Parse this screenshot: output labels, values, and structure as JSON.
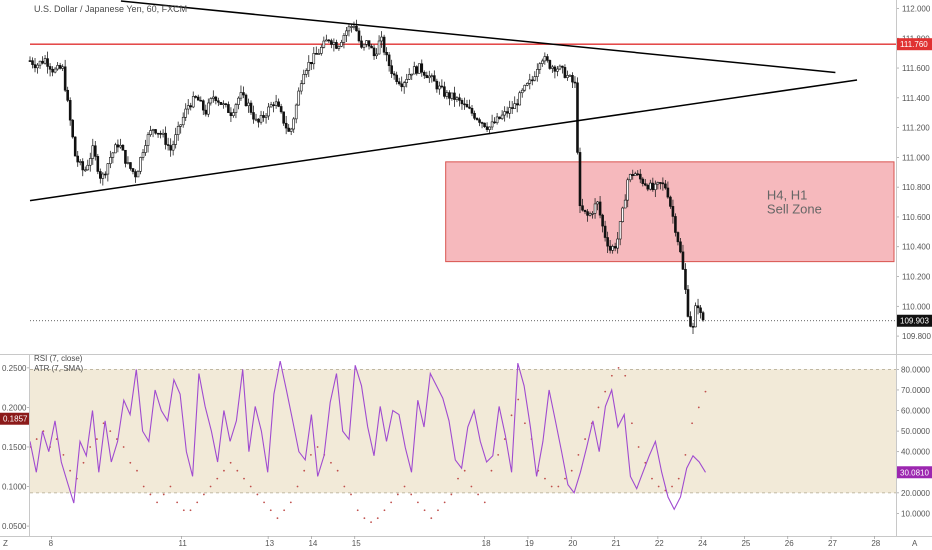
{
  "chart_data": [
    {
      "type": "candlestick",
      "title": "U.S. Dollar / Japanese Yen, 60, FXCM",
      "symbol": "USDJPY",
      "timeframe": "60",
      "source": "FXCM",
      "ylim": [
        109.72,
        112.03
      ],
      "y_ticks": [
        "112.000",
        "111.800",
        "111.600",
        "111.400",
        "111.200",
        "111.000",
        "110.800",
        "110.600",
        "110.400",
        "110.200",
        "110.000",
        "109.800"
      ],
      "x_ticks": [
        "8",
        "11",
        "13",
        "14",
        "15",
        "18",
        "19",
        "20",
        "21",
        "22",
        "24",
        "25",
        "26",
        "27",
        "28"
      ],
      "x_tick_pos": [
        0.5,
        3.5,
        5.5,
        6.5,
        7.5,
        10.5,
        11.5,
        12.5,
        13.5,
        14.5,
        15.5,
        16.5,
        17.5,
        18.5,
        19.5
      ],
      "x_range": [
        0,
        20
      ],
      "x_edge_left": "Z",
      "x_edge_right": "A",
      "price_levels": [
        {
          "name": "resistance",
          "value": 111.76,
          "label": "111.760",
          "color": "#e03131"
        },
        {
          "name": "last",
          "value": 109.903,
          "label": "109.903",
          "color": "#333333"
        }
      ],
      "trendlines": [
        {
          "name": "upper",
          "points": [
            [
              2.1,
              112.05
            ],
            [
              18.6,
              111.57
            ]
          ]
        },
        {
          "name": "lower",
          "points": [
            [
              0,
              110.71
            ],
            [
              19.1,
              111.52
            ]
          ]
        }
      ],
      "zone": {
        "label_line1": "H4, H1",
        "label_line2": "Sell Zone",
        "y_top": 110.97,
        "y_bottom": 110.3,
        "x_start": 9.6,
        "x_end": 20,
        "color": "#f3a5ab"
      },
      "path": [
        [
          0,
          111.65
        ],
        [
          0.15,
          111.62
        ],
        [
          0.35,
          111.66
        ],
        [
          0.55,
          111.58
        ],
        [
          0.75,
          111.6
        ],
        [
          0.9,
          111.3
        ],
        [
          1.05,
          111.0
        ],
        [
          1.25,
          110.9
        ],
        [
          1.45,
          111.05
        ],
        [
          1.65,
          110.85
        ],
        [
          1.85,
          111.0
        ],
        [
          2.05,
          111.1
        ],
        [
          2.25,
          110.95
        ],
        [
          2.45,
          110.88
        ],
        [
          2.65,
          111.1
        ],
        [
          2.85,
          111.2
        ],
        [
          3.05,
          111.15
        ],
        [
          3.25,
          111.05
        ],
        [
          3.45,
          111.2
        ],
        [
          3.65,
          111.35
        ],
        [
          3.85,
          111.4
        ],
        [
          4.05,
          111.3
        ],
        [
          4.25,
          111.42
        ],
        [
          4.45,
          111.35
        ],
        [
          4.65,
          111.3
        ],
        [
          4.85,
          111.42
        ],
        [
          5.05,
          111.35
        ],
        [
          5.25,
          111.22
        ],
        [
          5.45,
          111.3
        ],
        [
          5.65,
          111.38
        ],
        [
          5.85,
          111.25
        ],
        [
          6.0,
          111.15
        ],
        [
          6.15,
          111.35
        ],
        [
          6.3,
          111.58
        ],
        [
          6.5,
          111.65
        ],
        [
          6.7,
          111.72
        ],
        [
          6.9,
          111.8
        ],
        [
          7.1,
          111.75
        ],
        [
          7.3,
          111.85
        ],
        [
          7.5,
          111.9
        ],
        [
          7.65,
          111.72
        ],
        [
          7.8,
          111.78
        ],
        [
          7.95,
          111.68
        ],
        [
          8.1,
          111.8
        ],
        [
          8.25,
          111.65
        ],
        [
          8.4,
          111.55
        ],
        [
          8.6,
          111.5
        ],
        [
          8.8,
          111.58
        ],
        [
          9.0,
          111.6
        ],
        [
          9.2,
          111.55
        ],
        [
          9.4,
          111.48
        ],
        [
          9.6,
          111.42
        ],
        [
          9.8,
          111.4
        ],
        [
          10.0,
          111.35
        ],
        [
          10.2,
          111.3
        ],
        [
          10.4,
          111.25
        ],
        [
          10.6,
          111.2
        ],
        [
          10.8,
          111.25
        ],
        [
          11.0,
          111.3
        ],
        [
          11.2,
          111.35
        ],
        [
          11.4,
          111.45
        ],
        [
          11.6,
          111.52
        ],
        [
          11.8,
          111.68
        ],
        [
          12.0,
          111.62
        ],
        [
          12.2,
          111.6
        ],
        [
          12.4,
          111.55
        ],
        [
          12.6,
          111.48
        ],
        [
          12.65,
          111.0
        ],
        [
          12.7,
          110.65
        ],
        [
          12.9,
          110.6
        ],
        [
          13.1,
          110.7
        ],
        [
          13.25,
          110.5
        ],
        [
          13.4,
          110.38
        ],
        [
          13.55,
          110.42
        ],
        [
          13.7,
          110.65
        ],
        [
          13.8,
          110.85
        ],
        [
          13.95,
          110.9
        ],
        [
          14.1,
          110.85
        ],
        [
          14.25,
          110.82
        ],
        [
          14.4,
          110.78
        ],
        [
          14.55,
          110.82
        ],
        [
          14.7,
          110.8
        ],
        [
          14.85,
          110.6
        ],
        [
          15.0,
          110.4
        ],
        [
          15.1,
          110.2
        ],
        [
          15.2,
          109.95
        ],
        [
          15.3,
          109.82
        ],
        [
          15.4,
          110.05
        ],
        [
          15.5,
          109.92
        ],
        [
          15.6,
          109.9
        ]
      ]
    },
    {
      "type": "line",
      "indicator": "RSI (7, close)",
      "value_label": "30.0810",
      "value_color": "#9c27b0",
      "ylim": [
        0,
        86.5
      ],
      "y_ticks": [
        "80.0000",
        "70.0000",
        "60.0000",
        "50.0000",
        "40.0000",
        "30.0000",
        "20.0000",
        "10.0000"
      ],
      "band": {
        "top": 80,
        "bottom": 20,
        "color": "#f2ead8"
      },
      "series": [
        {
          "name": "RSI",
          "color": "#a04bd0",
          "values": [
            45,
            30,
            50,
            40,
            55,
            35,
            25,
            15,
            45,
            38,
            60,
            30,
            55,
            35,
            45,
            65,
            58,
            80,
            50,
            45,
            70,
            60,
            55,
            75,
            68,
            40,
            28,
            78,
            62,
            50,
            35,
            60,
            45,
            55,
            80,
            40,
            62,
            50,
            30,
            68,
            84,
            70,
            55,
            40,
            36,
            58,
            28,
            38,
            64,
            78,
            50,
            46,
            82,
            72,
            52,
            38,
            62,
            45,
            60,
            58,
            42,
            30,
            65,
            52,
            78,
            72,
            66,
            55,
            36,
            32,
            52,
            60,
            45,
            35,
            38,
            62,
            48,
            30,
            83,
            72,
            52,
            28,
            45,
            70,
            55,
            40,
            24,
            20,
            30,
            42,
            55,
            40,
            62,
            70,
            52,
            58,
            28,
            22,
            30,
            38,
            45,
            30,
            18,
            12,
            18,
            32,
            38,
            35,
            30
          ]
        }
      ],
      "x_range": [
        0,
        20
      ]
    },
    {
      "type": "scatter",
      "indicator": "ATR (7, SMA)",
      "value_label": "0.1857",
      "value_color": "#8b1a1a",
      "ylim": [
        0.04,
        0.265
      ],
      "y_ticks": [
        "0.2500",
        "0.2000",
        "0.1500",
        "0.1000",
        "0.0500"
      ],
      "series": [
        {
          "name": "ATR",
          "color": "#c0504d",
          "values": [
            0.15,
            0.16,
            0.17,
            0.15,
            0.16,
            0.14,
            0.12,
            0.11,
            0.13,
            0.15,
            0.16,
            0.18,
            0.17,
            0.16,
            0.15,
            0.13,
            0.12,
            0.1,
            0.09,
            0.08,
            0.09,
            0.1,
            0.08,
            0.07,
            0.07,
            0.08,
            0.09,
            0.1,
            0.11,
            0.12,
            0.13,
            0.12,
            0.11,
            0.1,
            0.09,
            0.08,
            0.07,
            0.06,
            0.07,
            0.08,
            0.1,
            0.12,
            0.14,
            0.15,
            0.14,
            0.13,
            0.12,
            0.1,
            0.09,
            0.07,
            0.06,
            0.055,
            0.06,
            0.07,
            0.08,
            0.09,
            0.1,
            0.09,
            0.08,
            0.07,
            0.06,
            0.07,
            0.08,
            0.09,
            0.11,
            0.12,
            0.1,
            0.09,
            0.08,
            0.12,
            0.14,
            0.16,
            0.19,
            0.21,
            0.18,
            0.16,
            0.12,
            0.11,
            0.1,
            0.1,
            0.11,
            0.12,
            0.14,
            0.16,
            0.18,
            0.2,
            0.22,
            0.24,
            0.25,
            0.24,
            0.18,
            0.15,
            0.13,
            0.11,
            0.1,
            0.095,
            0.1,
            0.11,
            0.14,
            0.18,
            0.2,
            0.22
          ]
        }
      ],
      "x_range": [
        0,
        20
      ]
    }
  ]
}
